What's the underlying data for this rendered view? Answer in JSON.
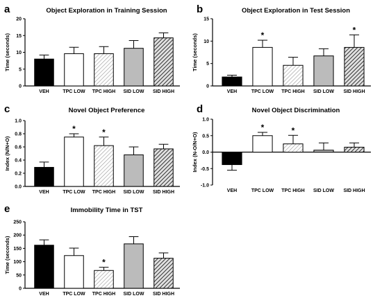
{
  "colors": {
    "VEH": "#000000",
    "TPC LOW": "#ffffff",
    "TPC HIGH": "hatch-light",
    "SID LOW": "#bbbbbb",
    "SID HIGH": "hatch-dark"
  },
  "chart_data": [
    {
      "type": "bar",
      "panel": "a",
      "title": "Object Exploration in Training Session",
      "ylabel": "Time (seconds)",
      "categories": [
        "VEH",
        "TPC LOW",
        "TPC HIGH",
        "SID LOW",
        "SID HIGH"
      ],
      "values": [
        8.0,
        9.6,
        9.6,
        11.2,
        14.3
      ],
      "errors": [
        1.2,
        1.9,
        2.1,
        2.3,
        1.5
      ],
      "significant": [
        false,
        false,
        false,
        false,
        false
      ],
      "ylim": [
        0,
        20
      ],
      "yticks": [
        0,
        5,
        10,
        15,
        20
      ],
      "ytick_labels": [
        "0",
        "5",
        "10",
        "15",
        "20"
      ]
    },
    {
      "type": "bar",
      "panel": "b",
      "title": "Object Exploration in Test Session",
      "ylabel": "Time (seconds)",
      "categories": [
        "VEH",
        "TPC LOW",
        "TPC HIGH",
        "SID LOW",
        "SID HIGH"
      ],
      "values": [
        2.0,
        8.6,
        4.6,
        6.7,
        8.6
      ],
      "errors": [
        0.4,
        1.6,
        1.8,
        1.6,
        2.8
      ],
      "significant": [
        false,
        true,
        false,
        false,
        true
      ],
      "ylim": [
        0,
        15
      ],
      "yticks": [
        0,
        5,
        10,
        15
      ],
      "ytick_labels": [
        "0",
        "5",
        "10",
        "15"
      ]
    },
    {
      "type": "bar",
      "panel": "c",
      "title": "Novel Object Preference",
      "ylabel": "Index (N/N+O)",
      "categories": [
        "VEH",
        "TPC LOW",
        "TPC HIGH",
        "SID LOW",
        "SID HIGH"
      ],
      "values": [
        0.29,
        0.75,
        0.62,
        0.48,
        0.57
      ],
      "errors": [
        0.08,
        0.05,
        0.13,
        0.12,
        0.07
      ],
      "significant": [
        false,
        true,
        true,
        false,
        false
      ],
      "ylim": [
        0,
        1.0
      ],
      "yticks": [
        0,
        0.2,
        0.4,
        0.6,
        0.8,
        1.0
      ],
      "ytick_labels": [
        "0.0",
        "0.2",
        "0.4",
        "0.6",
        "0.8",
        "1.0"
      ]
    },
    {
      "type": "bar",
      "panel": "d",
      "title": "Novel Object Discrimination",
      "ylabel": "Index (N-O/N+O)",
      "categories": [
        "VEH",
        "TPC LOW",
        "TPC HIGH",
        "SID LOW",
        "SID HIGH"
      ],
      "values": [
        -0.38,
        0.5,
        0.25,
        0.06,
        0.15
      ],
      "errors": [
        0.17,
        0.1,
        0.26,
        0.22,
        0.13
      ],
      "significant": [
        false,
        true,
        true,
        false,
        false
      ],
      "ylim": [
        -1.0,
        1.0
      ],
      "yticks": [
        -1.0,
        -0.5,
        0,
        0.5,
        1.0
      ],
      "ytick_labels": [
        "-1.0",
        "-0.5",
        "0.0",
        "0.5",
        "1.0"
      ]
    },
    {
      "type": "bar",
      "panel": "e",
      "title": "Immobility Time in TST",
      "ylabel": "Time (seconds)",
      "categories": [
        "VEH",
        "TPC LOW",
        "TPC HIGH",
        "SID LOW",
        "SID HIGH"
      ],
      "values": [
        162,
        123,
        67,
        167,
        113
      ],
      "errors": [
        20,
        28,
        12,
        27,
        20
      ],
      "significant": [
        false,
        false,
        true,
        false,
        false
      ],
      "ylim": [
        0,
        250
      ],
      "yticks": [
        0,
        50,
        100,
        150,
        200,
        250
      ],
      "ytick_labels": [
        "0",
        "50",
        "100",
        "150",
        "200",
        "250"
      ]
    }
  ]
}
